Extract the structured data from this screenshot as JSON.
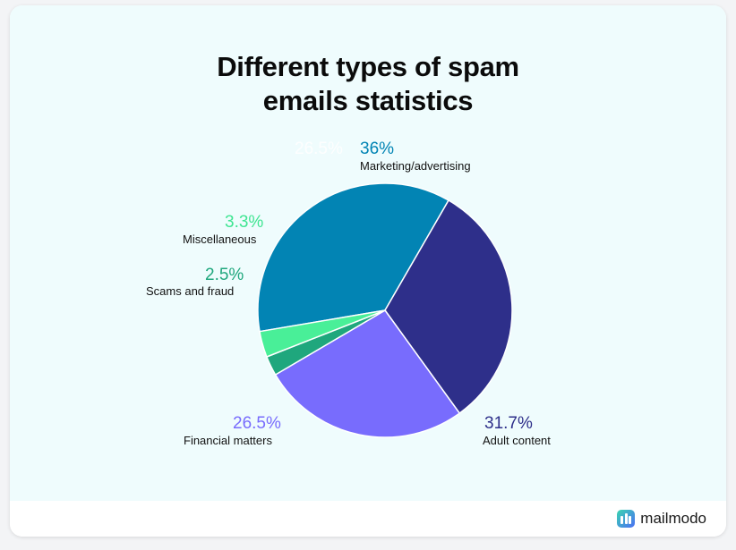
{
  "chart_data": {
    "type": "pie",
    "title": [
      "Different types of spam",
      "emails statistics"
    ],
    "slices": [
      {
        "label": "Marketing/advertising",
        "value": 36,
        "display": "36%",
        "color": "#0284b4"
      },
      {
        "label": "Adult content",
        "value": 31.7,
        "display": "31.7%",
        "color": "#2e2f8a"
      },
      {
        "label": "Financial matters",
        "value": 26.5,
        "display": "26.5%",
        "color": "#786cfd"
      },
      {
        "label": "Scams and fraud",
        "value": 2.5,
        "display": "2.5%",
        "color": "#1fa77d"
      },
      {
        "label": "Miscellaneous",
        "value": 3.3,
        "display": "3.3%",
        "color": "#49ef98"
      }
    ],
    "ghost_label": "26.5%"
  },
  "brand": {
    "name": "mailmodo",
    "logo_icon": "mailmodo-logo-icon"
  }
}
